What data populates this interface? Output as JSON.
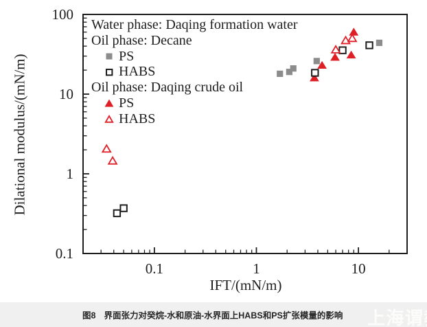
{
  "chart_data": {
    "type": "scatter",
    "title": "",
    "xlabel": "IFT/(mN/m)",
    "ylabel": "Dilational modulus/(mN/m)",
    "x_scale": "log",
    "y_scale": "log",
    "xlim": [
      0.02,
      30
    ],
    "ylim": [
      0.1,
      100
    ],
    "grid": false,
    "x_ticks": [
      {
        "value": 0.1,
        "label": "0.1"
      },
      {
        "value": 1,
        "label": "1"
      },
      {
        "value": 10,
        "label": "10"
      }
    ],
    "y_ticks": [
      {
        "value": 100,
        "label": "100"
      },
      {
        "value": 10,
        "label": "10"
      },
      {
        "value": 1,
        "label": "1"
      },
      {
        "value": 0.1,
        "label": "0.1"
      }
    ],
    "legend": {
      "position": "inside-top-left",
      "water_phase": "Water phase: Daqing formation water",
      "decane_header": "Oil phase: Decane",
      "decane_ps_label": "PS",
      "decane_habs_label": "HABS",
      "crude_header": "Oil phase: Daqing crude oil",
      "crude_ps_label": "PS",
      "crude_habs_label": "HABS"
    },
    "series": [
      {
        "name": "decane-ps",
        "label": "PS (oil phase: decane)",
        "marker": "filled-square",
        "color": "#8c8c8c",
        "points": [
          [
            1.7,
            18
          ],
          [
            2.1,
            19
          ],
          [
            2.3,
            21
          ],
          [
            3.9,
            26
          ],
          [
            16,
            44
          ]
        ]
      },
      {
        "name": "decane-habs",
        "label": "HABS (oil phase: decane)",
        "marker": "open-square",
        "color": "#1c1c1c",
        "points": [
          [
            0.043,
            0.32
          ],
          [
            0.05,
            0.37
          ],
          [
            3.75,
            18.5
          ],
          [
            7.0,
            35.5
          ],
          [
            12.8,
            41
          ]
        ]
      },
      {
        "name": "crude-ps",
        "label": "PS (oil phase: Daqing crude oil)",
        "marker": "filled-triangle",
        "color": "#df1f26",
        "points": [
          [
            3.7,
            16
          ],
          [
            4.4,
            23
          ],
          [
            5.9,
            29
          ],
          [
            8.5,
            31
          ],
          [
            9.0,
            60
          ]
        ]
      },
      {
        "name": "crude-habs",
        "label": "HABS (oil phase: Daqing crude oil)",
        "marker": "open-triangle",
        "color": "#df1f26",
        "points": [
          [
            0.034,
            2.05
          ],
          [
            0.039,
            1.45
          ],
          [
            6.0,
            36
          ],
          [
            7.5,
            47
          ],
          [
            8.7,
            50
          ]
        ]
      }
    ]
  },
  "caption": {
    "figure_label": "图8",
    "text": "界面张力对癸烷-水和原油-水界面上HABS和PS扩张模量的影响"
  },
  "watermark": {
    "text": "上海谓教",
    "color": "#fcfcfa"
  }
}
